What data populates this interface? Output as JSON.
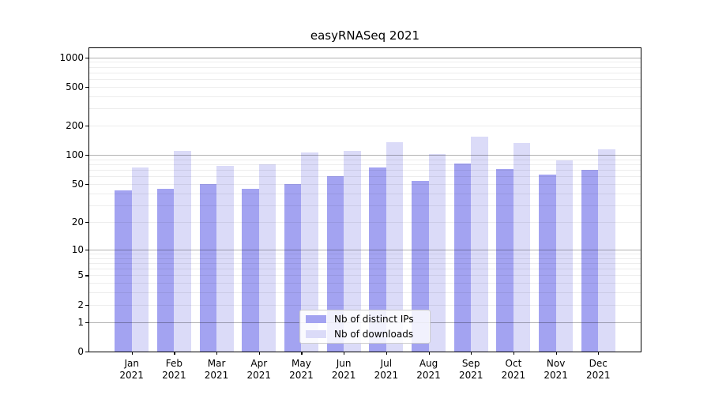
{
  "title": "easyRNASeq 2021",
  "chart_data": {
    "type": "bar",
    "title": "easyRNASeq 2021",
    "xlabel": "",
    "ylabel": "",
    "y_scale": "log10(value+1)",
    "y_ticks": [
      0,
      1,
      2,
      5,
      10,
      20,
      50,
      100,
      200,
      500,
      1000
    ],
    "ylim": [
      0,
      1270
    ],
    "grid": "horizontal major and minor gridlines, drawn above bars",
    "legend_position": "lower center inside plot",
    "categories": [
      "Jan 2021",
      "Feb 2021",
      "Mar 2021",
      "Apr 2021",
      "May 2021",
      "Jun 2021",
      "Jul 2021",
      "Aug 2021",
      "Sep 2021",
      "Oct 2021",
      "Nov 2021",
      "Dec 2021"
    ],
    "series": [
      {
        "name": "Nb of distinct IPs",
        "color": "#a3a3f1",
        "values": [
          43,
          45,
          50,
          45,
          50,
          60,
          75,
          54,
          81,
          72,
          63,
          71
        ]
      },
      {
        "name": "Nb of downloads",
        "color": "#dbdbf8",
        "values": [
          75,
          110,
          77,
          80,
          106,
          111,
          135,
          102,
          154,
          134,
          88,
          115
        ]
      }
    ]
  },
  "legend": {
    "items": [
      "Nb of distinct IPs",
      "Nb of downloads"
    ]
  },
  "colors": {
    "bar_distinct_ips": "#a3a3f1",
    "bar_downloads": "#dbdbf8",
    "spine": "#000000",
    "major_grid": "#b0b0b0",
    "minor_grid": "#ececec",
    "legend_border": "#cccccc",
    "text": "#000000"
  }
}
